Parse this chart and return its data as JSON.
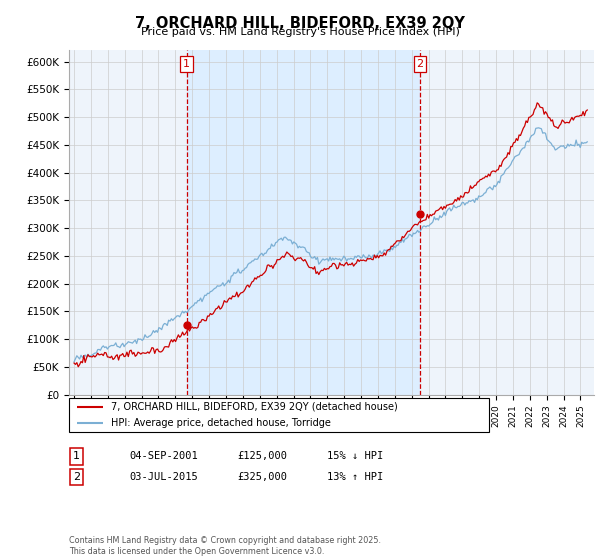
{
  "title": "7, ORCHARD HILL, BIDEFORD, EX39 2QY",
  "subtitle": "Price paid vs. HM Land Registry's House Price Index (HPI)",
  "ylabel_ticks": [
    "£0",
    "£50K",
    "£100K",
    "£150K",
    "£200K",
    "£250K",
    "£300K",
    "£350K",
    "£400K",
    "£450K",
    "£500K",
    "£550K",
    "£600K"
  ],
  "ylim": [
    0,
    620000
  ],
  "xlim_start": 1994.7,
  "xlim_end": 2025.8,
  "sale1_date": 2001.67,
  "sale1_price": 125000,
  "sale2_date": 2015.5,
  "sale2_price": 325000,
  "red_line_color": "#cc0000",
  "blue_line_color": "#7bafd4",
  "shade_color": "#ddeeff",
  "legend_red_label": "7, ORCHARD HILL, BIDEFORD, EX39 2QY (detached house)",
  "legend_blue_label": "HPI: Average price, detached house, Torridge",
  "footer": "Contains HM Land Registry data © Crown copyright and database right 2025.\nThis data is licensed under the Open Government Licence v3.0.",
  "background_color": "#ffffff",
  "grid_color": "#cccccc",
  "chart_bg": "#eef4fb"
}
